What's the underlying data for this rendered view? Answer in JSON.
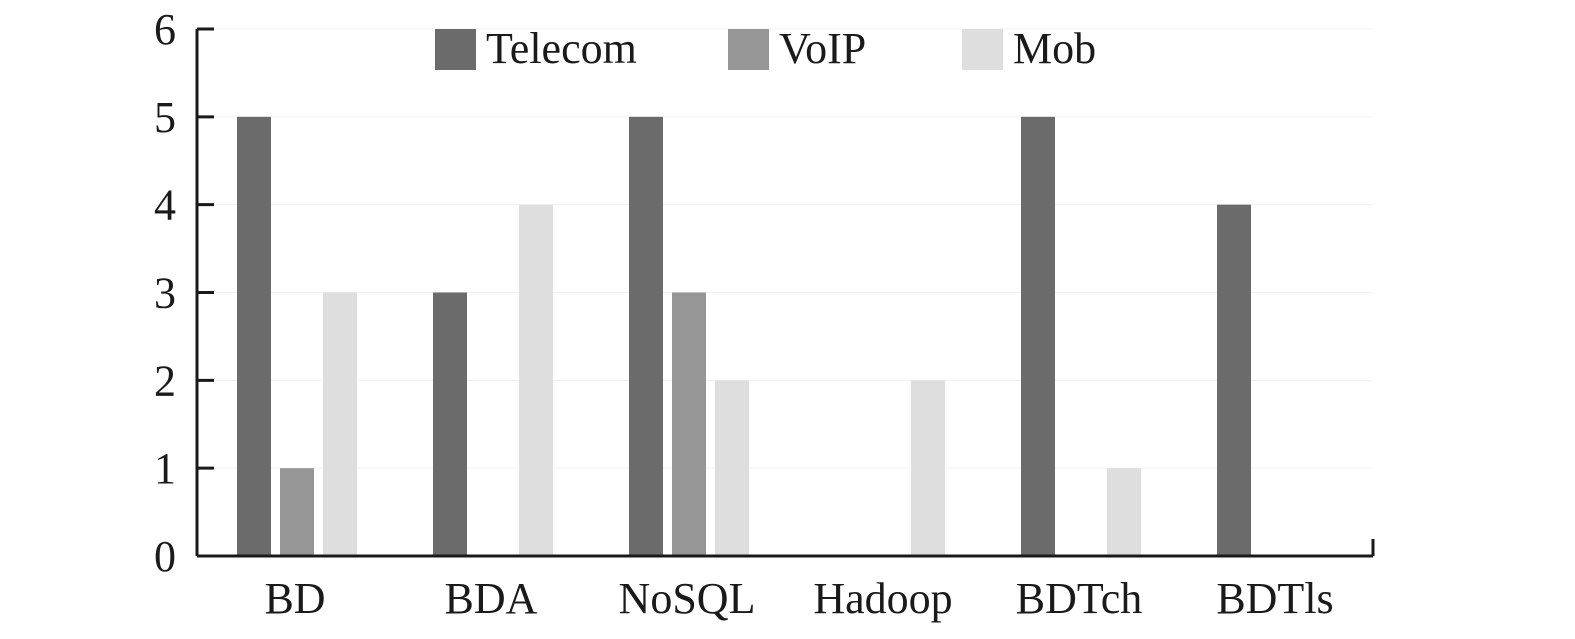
{
  "chart_data": {
    "type": "bar",
    "categories": [
      "BD",
      "BDA",
      "NoSQL",
      "Hadoop",
      "BDTch",
      "BDTls"
    ],
    "series": [
      {
        "name": "Telecom",
        "values": [
          5,
          3,
          5,
          0,
          5,
          4
        ],
        "color": "#6b6b6b"
      },
      {
        "name": "VoIP",
        "values": [
          1,
          0,
          3,
          0,
          0,
          0
        ],
        "color": "#969696"
      },
      {
        "name": "Mob",
        "values": [
          3,
          4,
          2,
          2,
          1,
          0
        ],
        "color": "#dedede"
      }
    ],
    "yticks": [
      "0",
      "1",
      "2",
      "3",
      "4",
      "5",
      "6"
    ],
    "ylim": [
      0,
      6
    ],
    "title": "",
    "xlabel": "",
    "ylabel": "",
    "grid": true,
    "legend_position": "top-center"
  }
}
